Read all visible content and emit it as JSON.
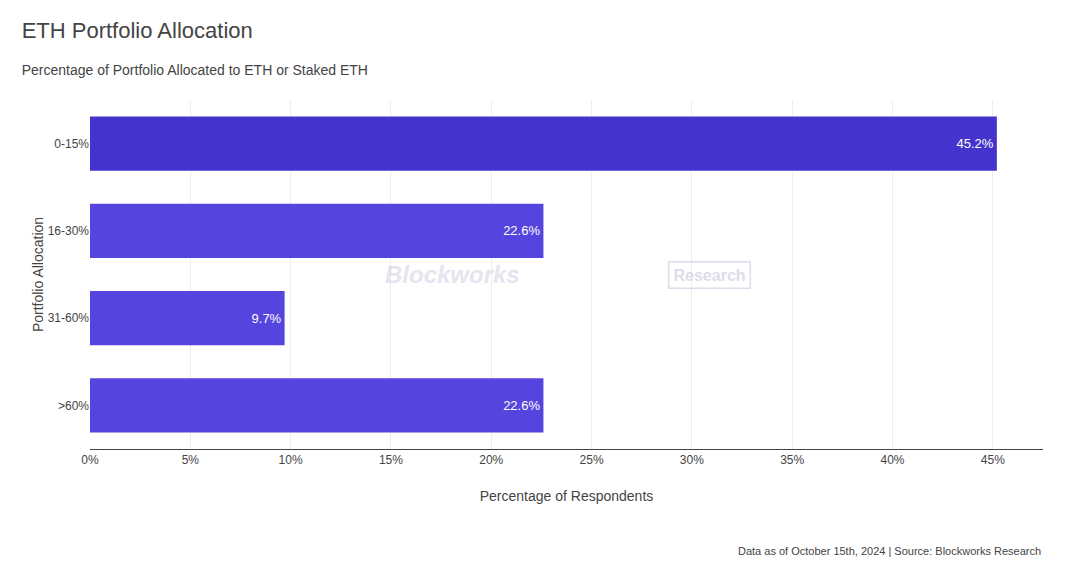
{
  "chart_data": {
    "type": "bar",
    "orientation": "horizontal",
    "title": "ETH Portfolio Allocation",
    "subtitle": "Percentage of Portfolio Allocated to ETH or Staked ETH",
    "categories": [
      "0-15%",
      "16-30%",
      "31-60%",
      ">60%"
    ],
    "values": [
      45.2,
      22.6,
      9.7,
      22.6
    ],
    "value_labels": [
      "45.2%",
      "22.6%",
      "9.7%",
      "22.6%"
    ],
    "data_labels": true,
    "colors": [
      "#4433cc",
      "#5544dd",
      "#5544dd",
      "#5544dd"
    ],
    "x_label": "Percentage of Respondents",
    "y_label": "Portfolio Allocation",
    "xlim": [
      0,
      47.5
    ],
    "xticks": [
      {
        "value": 0,
        "label": "0%"
      },
      {
        "value": 5,
        "label": "5%"
      },
      {
        "value": 10,
        "label": "10%"
      },
      {
        "value": 15,
        "label": "15%"
      },
      {
        "value": 20,
        "label": "20%"
      },
      {
        "value": 25,
        "label": "25%"
      },
      {
        "value": 30,
        "label": "30%"
      },
      {
        "value": 35,
        "label": "35%"
      },
      {
        "value": 40,
        "label": "40%"
      },
      {
        "value": 45,
        "label": "45%"
      }
    ],
    "grid": true,
    "annotations": [
      "Blockworks",
      "Research",
      "Data as of October 15th, 2024 | Source: Blockworks Research"
    ]
  }
}
